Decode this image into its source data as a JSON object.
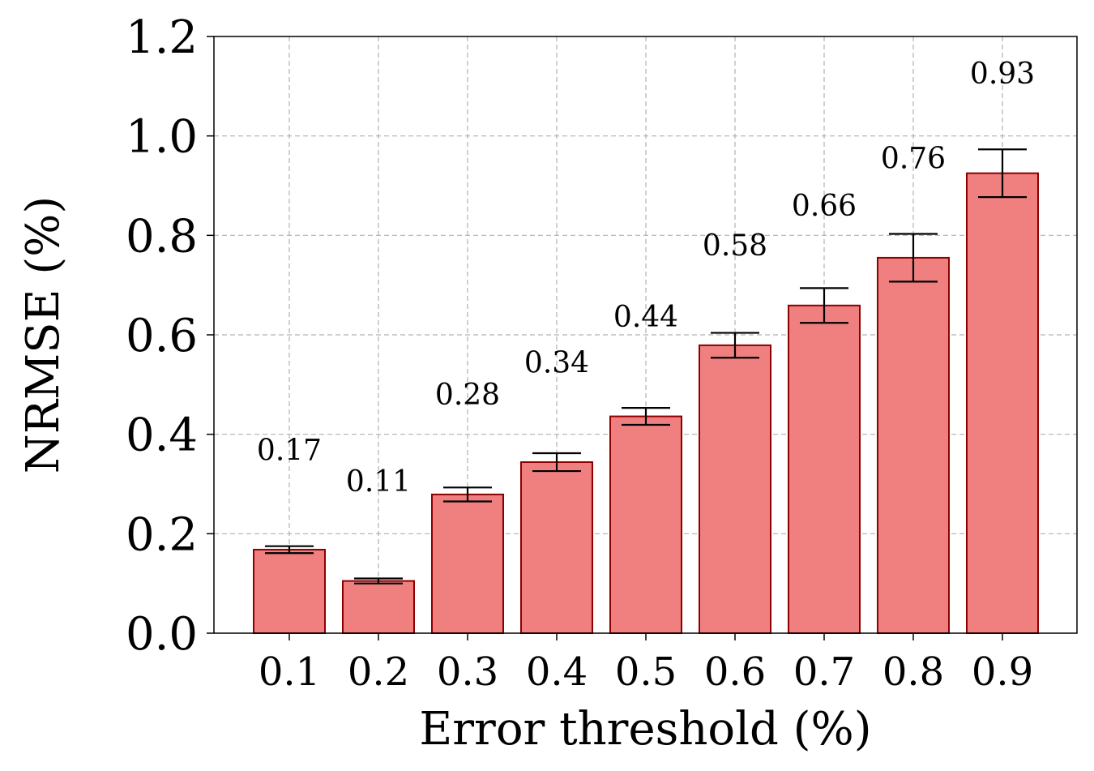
{
  "chart_data": {
    "type": "bar",
    "title": "",
    "xlabel": "Error threshold (%)",
    "ylabel": "NRMSE (%)",
    "categories": [
      "0.1",
      "0.2",
      "0.3",
      "0.4",
      "0.5",
      "0.6",
      "0.7",
      "0.8",
      "0.9"
    ],
    "values": [
      0.168,
      0.105,
      0.279,
      0.344,
      0.436,
      0.579,
      0.659,
      0.755,
      0.925
    ],
    "error": [
      0.007,
      0.005,
      0.014,
      0.018,
      0.017,
      0.025,
      0.035,
      0.048,
      0.048
    ],
    "value_labels": [
      "0.17",
      "0.11",
      "0.28",
      "0.34",
      "0.44",
      "0.58",
      "0.66",
      "0.76",
      "0.93"
    ],
    "ylim": [
      0.0,
      1.2
    ],
    "yticks": [
      "0.0",
      "0.2",
      "0.4",
      "0.6",
      "0.8",
      "1.0",
      "1.2"
    ],
    "grid": true,
    "bar_color": "#f08080",
    "bar_edge_color": "#8b0000",
    "grid_color": "#b0b0b0"
  }
}
